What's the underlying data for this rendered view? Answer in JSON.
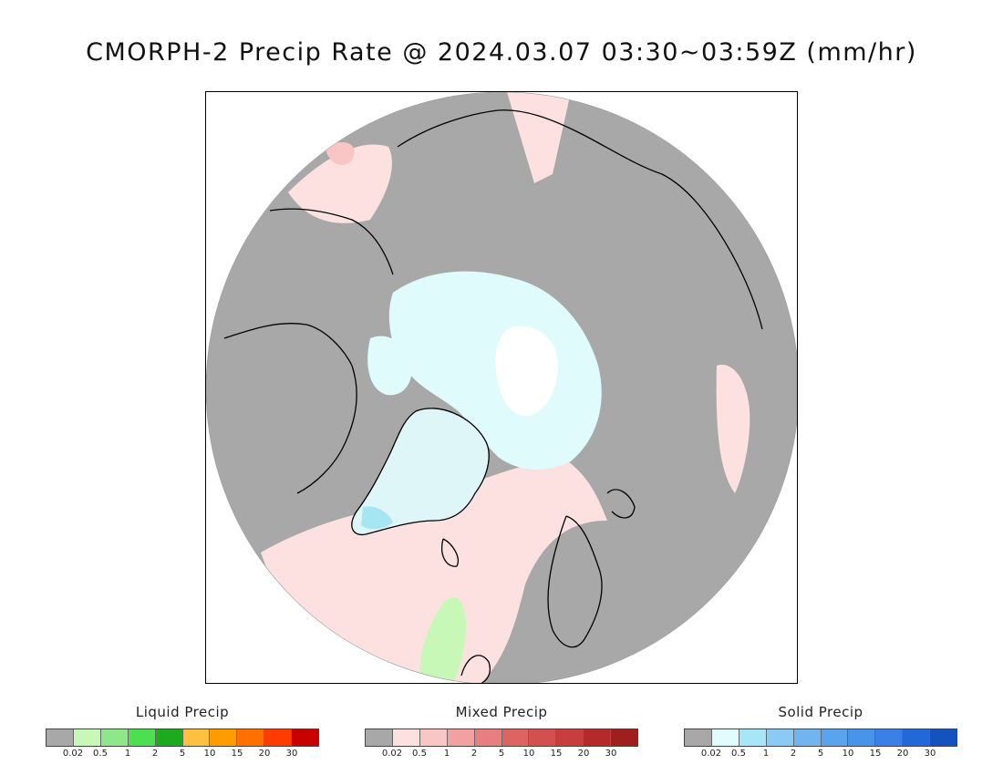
{
  "title": "CMORPH-2 Precip Rate @ 2024.03.07 03:30~03:59Z (mm/hr)",
  "map": {
    "projection": "north polar stereographic",
    "colors": {
      "no_precip": "#a8a8a8",
      "ocean_mixed_light": "#fde0e0",
      "mixed_medium": "#f9c5c5",
      "snow_light": "#e0fbfc",
      "snow_heavy": "#a6e6f2",
      "greenland": "#dff6f8",
      "pole_white": "#ffffff",
      "liquid_light": "#c8f8b8",
      "coastline": "#000000"
    }
  },
  "legends": [
    {
      "title": "Liquid Precip",
      "colors": [
        "#a8a8a8",
        "#c8f8b8",
        "#8ee88a",
        "#4ce050",
        "#1eaa1e",
        "#ffc040",
        "#ff9c00",
        "#ff7000",
        "#ff3c00",
        "#c80000"
      ],
      "ticks": [
        "0.02",
        "0.5",
        "1",
        "2",
        "5",
        "10",
        "15",
        "20",
        "30"
      ]
    },
    {
      "title": "Mixed Precip",
      "colors": [
        "#a8a8a8",
        "#fde0e0",
        "#f9c5c5",
        "#f2a0a0",
        "#e87e7e",
        "#de6464",
        "#d45050",
        "#c83e3e",
        "#b42a2a",
        "#a01e1e"
      ],
      "ticks": [
        "0.02",
        "0.5",
        "1",
        "2",
        "5",
        "10",
        "15",
        "20",
        "30"
      ]
    },
    {
      "title": "Solid Precip",
      "colors": [
        "#a8a8a8",
        "#e0fcfc",
        "#a6e6f8",
        "#8ccaf6",
        "#70b4f0",
        "#5aa4ee",
        "#4894ea",
        "#3a80e6",
        "#2268d8",
        "#1452c0"
      ],
      "ticks": [
        "0.02",
        "0.5",
        "1",
        "2",
        "5",
        "10",
        "15",
        "20",
        "30"
      ]
    }
  ]
}
